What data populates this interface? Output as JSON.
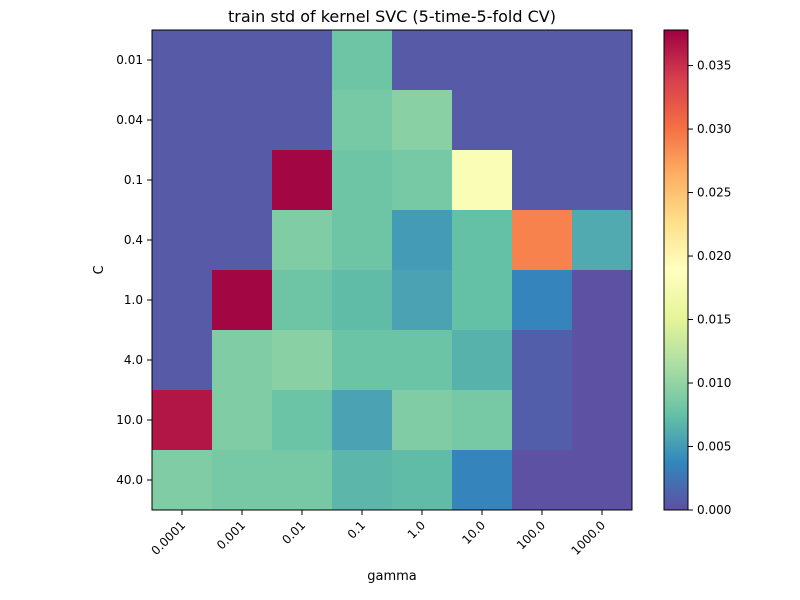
{
  "chart_data": {
    "type": "heatmap",
    "title": "train std of kernel SVC (5-time-5-fold CV)",
    "xlabel": "gamma",
    "ylabel": "C",
    "x_categories": [
      "0.0001",
      "0.001",
      "0.01",
      "0.1",
      "1.0",
      "10.0",
      "100.0",
      "1000.0"
    ],
    "y_categories": [
      "0.01",
      "0.04",
      "0.1",
      "0.4",
      "1.0",
      "4.0",
      "10.0",
      "40.0"
    ],
    "values": [
      [
        0.0007,
        0.0007,
        0.0007,
        0.008,
        0.0007,
        0.0007,
        0.0007,
        0.0007
      ],
      [
        0.0007,
        0.0007,
        0.0007,
        0.0085,
        0.0095,
        0.0007,
        0.0007,
        0.0007
      ],
      [
        0.0007,
        0.0007,
        0.0375,
        0.008,
        0.0085,
        0.018,
        0.0007,
        0.0007
      ],
      [
        0.0007,
        0.0007,
        0.009,
        0.008,
        0.005,
        0.0075,
        0.029,
        0.006
      ],
      [
        0.0007,
        0.0375,
        0.008,
        0.0072,
        0.0055,
        0.0075,
        0.0035,
        0.0001
      ],
      [
        0.0007,
        0.009,
        0.0095,
        0.0078,
        0.0078,
        0.0065,
        0.001,
        0.0001
      ],
      [
        0.0365,
        0.009,
        0.0078,
        0.0055,
        0.009,
        0.0085,
        0.001,
        0.0001
      ],
      [
        0.009,
        0.0085,
        0.0085,
        0.0068,
        0.0072,
        0.0035,
        0.0001,
        0.0001
      ]
    ],
    "colorbar": {
      "min": 0.0,
      "max": 0.0378,
      "ticks": [
        "0.000",
        "0.005",
        "0.010",
        "0.015",
        "0.020",
        "0.025",
        "0.030",
        "0.035"
      ],
      "tick_values": [
        0.0,
        0.005,
        0.01,
        0.015,
        0.02,
        0.025,
        0.03,
        0.035
      ]
    },
    "colormap": "Spectral_r",
    "colormap_stops": [
      "#5e4fa2",
      "#3288bd",
      "#66c2a5",
      "#abdda4",
      "#e6f598",
      "#ffffbf",
      "#fee08b",
      "#fdae61",
      "#f46d43",
      "#d53e4f",
      "#9e0142"
    ],
    "grid": false,
    "legend": "colorbar-right"
  }
}
